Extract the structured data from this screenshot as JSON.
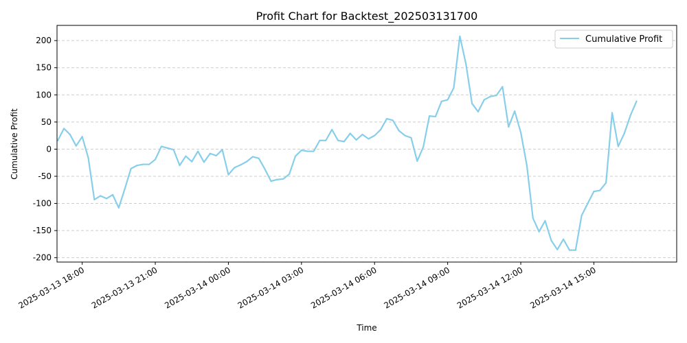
{
  "chart_data": {
    "type": "line",
    "title": "Profit Chart for Backtest_202503131700",
    "xlabel": "Time",
    "ylabel": "Cumulative Profit",
    "xlim": [
      "2025-03-13 16:58",
      "2025-03-14 18:24"
    ],
    "ylim": [
      -208,
      228
    ],
    "y_ticks": [
      200,
      150,
      100,
      50,
      0,
      -50,
      -100,
      -150,
      -200
    ],
    "x_ticks": [
      {
        "t": "2025-03-13 18:00",
        "label": "2025-03-13 18:00"
      },
      {
        "t": "2025-03-13 21:00",
        "label": "2025-03-13 21:00"
      },
      {
        "t": "2025-03-14 00:00",
        "label": "2025-03-14 00:00"
      },
      {
        "t": "2025-03-14 03:00",
        "label": "2025-03-14 03:00"
      },
      {
        "t": "2025-03-14 06:00",
        "label": "2025-03-14 06:00"
      },
      {
        "t": "2025-03-14 09:00",
        "label": "2025-03-14 09:00"
      },
      {
        "t": "2025-03-14 12:00",
        "label": "2025-03-14 12:00"
      },
      {
        "t": "2025-03-14 15:00",
        "label": "2025-03-14 15:00"
      }
    ],
    "grid": "y-dashed",
    "legend": "top-right",
    "series": [
      {
        "name": "Cumulative Profit",
        "color": "#87ceeb",
        "points": [
          {
            "x": "2025-03-13 17:00",
            "y": 16
          },
          {
            "x": "2025-03-13 17:15",
            "y": 38
          },
          {
            "x": "2025-03-13 17:30",
            "y": 27
          },
          {
            "x": "2025-03-13 17:45",
            "y": 6
          },
          {
            "x": "2025-03-13 18:00",
            "y": 23
          },
          {
            "x": "2025-03-13 18:15",
            "y": -16
          },
          {
            "x": "2025-03-13 18:30",
            "y": -93
          },
          {
            "x": "2025-03-13 18:45",
            "y": -86
          },
          {
            "x": "2025-03-13 19:00",
            "y": -91
          },
          {
            "x": "2025-03-13 19:15",
            "y": -84
          },
          {
            "x": "2025-03-13 19:30",
            "y": -108
          },
          {
            "x": "2025-03-13 19:45",
            "y": -73
          },
          {
            "x": "2025-03-13 20:00",
            "y": -36
          },
          {
            "x": "2025-03-13 20:15",
            "y": -30
          },
          {
            "x": "2025-03-13 20:30",
            "y": -28
          },
          {
            "x": "2025-03-13 20:45",
            "y": -28
          },
          {
            "x": "2025-03-13 21:00",
            "y": -19
          },
          {
            "x": "2025-03-13 21:15",
            "y": 5
          },
          {
            "x": "2025-03-13 21:30",
            "y": 2
          },
          {
            "x": "2025-03-13 21:45",
            "y": -1
          },
          {
            "x": "2025-03-13 22:00",
            "y": -30
          },
          {
            "x": "2025-03-13 22:15",
            "y": -13
          },
          {
            "x": "2025-03-13 22:30",
            "y": -23
          },
          {
            "x": "2025-03-13 22:45",
            "y": -4
          },
          {
            "x": "2025-03-13 23:00",
            "y": -24
          },
          {
            "x": "2025-03-13 23:15",
            "y": -8
          },
          {
            "x": "2025-03-13 23:30",
            "y": -12
          },
          {
            "x": "2025-03-13 23:45",
            "y": -1
          },
          {
            "x": "2025-03-14 00:00",
            "y": -47
          },
          {
            "x": "2025-03-14 00:15",
            "y": -34
          },
          {
            "x": "2025-03-14 00:30",
            "y": -29
          },
          {
            "x": "2025-03-14 00:45",
            "y": -23
          },
          {
            "x": "2025-03-14 01:00",
            "y": -14
          },
          {
            "x": "2025-03-14 01:15",
            "y": -17
          },
          {
            "x": "2025-03-14 01:30",
            "y": -37
          },
          {
            "x": "2025-03-14 01:45",
            "y": -59
          },
          {
            "x": "2025-03-14 02:00",
            "y": -56
          },
          {
            "x": "2025-03-14 02:15",
            "y": -55
          },
          {
            "x": "2025-03-14 02:30",
            "y": -46
          },
          {
            "x": "2025-03-14 02:45",
            "y": -13
          },
          {
            "x": "2025-03-14 03:00",
            "y": -2
          },
          {
            "x": "2025-03-14 03:15",
            "y": -4
          },
          {
            "x": "2025-03-14 03:30",
            "y": -4
          },
          {
            "x": "2025-03-14 03:45",
            "y": 16
          },
          {
            "x": "2025-03-14 04:00",
            "y": 16
          },
          {
            "x": "2025-03-14 04:15",
            "y": 36
          },
          {
            "x": "2025-03-14 04:30",
            "y": 16
          },
          {
            "x": "2025-03-14 04:45",
            "y": 14
          },
          {
            "x": "2025-03-14 05:00",
            "y": 29
          },
          {
            "x": "2025-03-14 05:15",
            "y": 17
          },
          {
            "x": "2025-03-14 05:30",
            "y": 27
          },
          {
            "x": "2025-03-14 05:45",
            "y": 19
          },
          {
            "x": "2025-03-14 06:00",
            "y": 25
          },
          {
            "x": "2025-03-14 06:15",
            "y": 36
          },
          {
            "x": "2025-03-14 06:30",
            "y": 56
          },
          {
            "x": "2025-03-14 06:45",
            "y": 53
          },
          {
            "x": "2025-03-14 07:00",
            "y": 34
          },
          {
            "x": "2025-03-14 07:15",
            "y": 25
          },
          {
            "x": "2025-03-14 07:30",
            "y": 21
          },
          {
            "x": "2025-03-14 07:45",
            "y": -22
          },
          {
            "x": "2025-03-14 08:00",
            "y": 4
          },
          {
            "x": "2025-03-14 08:15",
            "y": 61
          },
          {
            "x": "2025-03-14 08:30",
            "y": 60
          },
          {
            "x": "2025-03-14 08:45",
            "y": 88
          },
          {
            "x": "2025-03-14 09:00",
            "y": 91
          },
          {
            "x": "2025-03-14 09:15",
            "y": 113
          },
          {
            "x": "2025-03-14 09:30",
            "y": 208
          },
          {
            "x": "2025-03-14 09:45",
            "y": 157
          },
          {
            "x": "2025-03-14 10:00",
            "y": 84
          },
          {
            "x": "2025-03-14 10:15",
            "y": 69
          },
          {
            "x": "2025-03-14 10:30",
            "y": 91
          },
          {
            "x": "2025-03-14 10:45",
            "y": 97
          },
          {
            "x": "2025-03-14 11:00",
            "y": 99
          },
          {
            "x": "2025-03-14 11:15",
            "y": 115
          },
          {
            "x": "2025-03-14 11:30",
            "y": 41
          },
          {
            "x": "2025-03-14 11:45",
            "y": 70
          },
          {
            "x": "2025-03-14 12:00",
            "y": 31
          },
          {
            "x": "2025-03-14 12:15",
            "y": -30
          },
          {
            "x": "2025-03-14 12:30",
            "y": -127
          },
          {
            "x": "2025-03-14 12:45",
            "y": -152
          },
          {
            "x": "2025-03-14 13:00",
            "y": -132
          },
          {
            "x": "2025-03-14 13:15",
            "y": -168
          },
          {
            "x": "2025-03-14 13:30",
            "y": -185
          },
          {
            "x": "2025-03-14 13:45",
            "y": -166
          },
          {
            "x": "2025-03-14 14:00",
            "y": -186
          },
          {
            "x": "2025-03-14 14:15",
            "y": -186
          },
          {
            "x": "2025-03-14 14:30",
            "y": -122
          },
          {
            "x": "2025-03-14 14:45",
            "y": -100
          },
          {
            "x": "2025-03-14 15:00",
            "y": -78
          },
          {
            "x": "2025-03-14 15:15",
            "y": -76
          },
          {
            "x": "2025-03-14 15:30",
            "y": -62
          },
          {
            "x": "2025-03-14 15:45",
            "y": 67
          },
          {
            "x": "2025-03-14 16:00",
            "y": 5
          },
          {
            "x": "2025-03-14 16:15",
            "y": 29
          },
          {
            "x": "2025-03-14 16:30",
            "y": 62
          },
          {
            "x": "2025-03-14 16:45",
            "y": 88
          }
        ]
      }
    ]
  }
}
